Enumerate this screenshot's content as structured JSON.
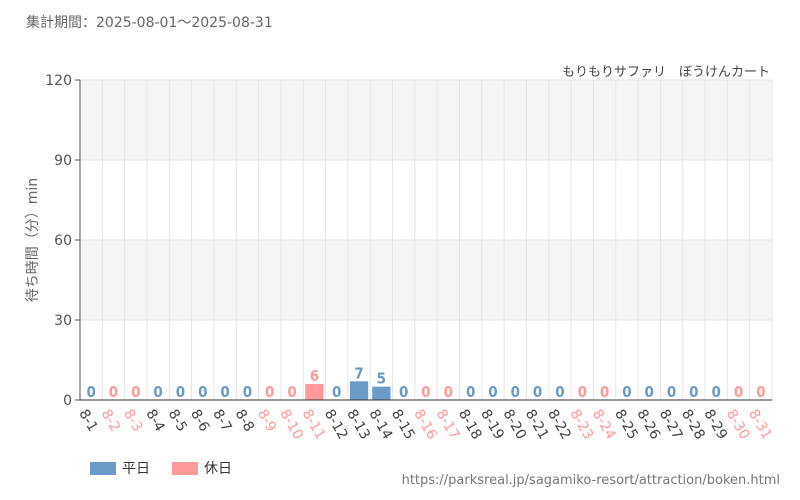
{
  "header": {
    "period_label": "集計期間：2025-08-01～2025-08-31"
  },
  "colors": {
    "weekday": "#6b9ac4",
    "holiday": "#ff9a9a",
    "axis_text": "#555555",
    "grid": "#e6e6e6",
    "band": "#f5f5f5"
  },
  "chart_data": {
    "type": "bar",
    "title": "",
    "subtitle": "もりもりサファリ　ぼうけんカート",
    "xlabel": "",
    "ylabel": "待ち時間（分）min",
    "ylim": [
      0,
      120
    ],
    "yticks": [
      0,
      30,
      60,
      90,
      120
    ],
    "grid": true,
    "legend_position": "bottom-left",
    "categories": [
      "8-1",
      "8-2",
      "8-3",
      "8-4",
      "8-5",
      "8-6",
      "8-7",
      "8-8",
      "8-9",
      "8-10",
      "8-11",
      "8-12",
      "8-13",
      "8-14",
      "8-15",
      "8-16",
      "8-17",
      "8-18",
      "8-19",
      "8-20",
      "8-21",
      "8-22",
      "8-23",
      "8-24",
      "8-25",
      "8-26",
      "8-27",
      "8-28",
      "8-29",
      "8-30",
      "8-31"
    ],
    "values": [
      0,
      0,
      0,
      0,
      0,
      0,
      0,
      0,
      0,
      0,
      6,
      0,
      7,
      5,
      0,
      0,
      0,
      0,
      0,
      0,
      0,
      0,
      0,
      0,
      0,
      0,
      0,
      0,
      0,
      0,
      0
    ],
    "day_type": [
      "weekday",
      "holiday",
      "holiday",
      "weekday",
      "weekday",
      "weekday",
      "weekday",
      "weekday",
      "holiday",
      "holiday",
      "holiday",
      "weekday",
      "weekday",
      "weekday",
      "weekday",
      "holiday",
      "holiday",
      "weekday",
      "weekday",
      "weekday",
      "weekday",
      "weekday",
      "holiday",
      "holiday",
      "weekday",
      "weekday",
      "weekday",
      "weekday",
      "weekday",
      "holiday",
      "holiday"
    ],
    "series": [
      {
        "name": "平日",
        "color": "#6b9ac4"
      },
      {
        "name": "休日",
        "color": "#ff9a9a"
      }
    ]
  },
  "footer": {
    "source_url": "https://parksreal.jp/sagamiko-resort/attraction/boken.html"
  }
}
